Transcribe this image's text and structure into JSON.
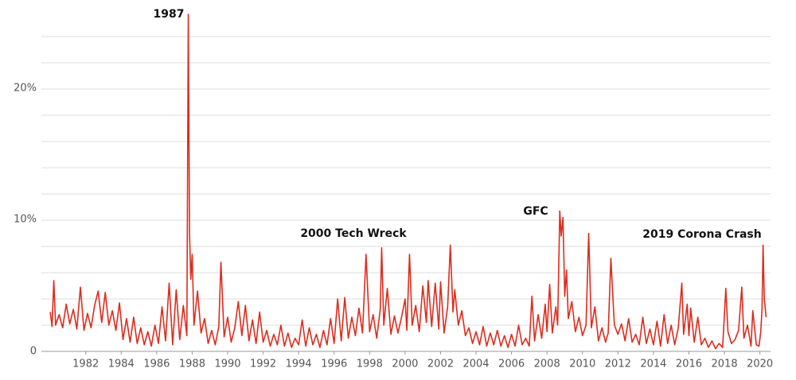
{
  "chart_data": {
    "type": "line",
    "annotations": [
      "1987",
      "2000 Tech Wreck",
      "GFC",
      "2019 Corona Crash"
    ],
    "x": [
      1980.0,
      1980.1,
      1980.2,
      1980.3,
      1980.5,
      1980.7,
      1980.9,
      1981.1,
      1981.3,
      1981.5,
      1981.7,
      1981.9,
      1982.1,
      1982.3,
      1982.5,
      1982.7,
      1982.9,
      1983.1,
      1983.3,
      1983.5,
      1983.7,
      1983.9,
      1984.1,
      1984.3,
      1984.5,
      1984.7,
      1984.9,
      1985.1,
      1985.3,
      1985.5,
      1985.7,
      1985.9,
      1986.1,
      1986.3,
      1986.5,
      1986.7,
      1986.9,
      1987.1,
      1987.3,
      1987.5,
      1987.7,
      1987.78,
      1987.85,
      1987.92,
      1988.0,
      1988.1,
      1988.3,
      1988.5,
      1988.7,
      1988.9,
      1989.1,
      1989.3,
      1989.5,
      1989.62,
      1989.8,
      1990.0,
      1990.2,
      1990.4,
      1990.6,
      1990.8,
      1991.0,
      1991.2,
      1991.4,
      1991.6,
      1991.8,
      1992.0,
      1992.2,
      1992.4,
      1992.6,
      1992.8,
      1993.0,
      1993.2,
      1993.4,
      1993.6,
      1993.8,
      1994.0,
      1994.2,
      1994.4,
      1994.6,
      1994.8,
      1995.0,
      1995.2,
      1995.4,
      1995.6,
      1995.8,
      1996.0,
      1996.2,
      1996.4,
      1996.6,
      1996.8,
      1997.0,
      1997.2,
      1997.4,
      1997.6,
      1997.8,
      1998.0,
      1998.2,
      1998.4,
      1998.6,
      1998.68,
      1998.8,
      1999.0,
      1999.2,
      1999.4,
      1999.6,
      1999.8,
      2000.0,
      2000.1,
      2000.25,
      2000.4,
      2000.6,
      2000.8,
      2001.0,
      2001.2,
      2001.3,
      2001.5,
      2001.7,
      2001.9,
      2002.0,
      2002.2,
      2002.4,
      2002.55,
      2002.7,
      2002.8,
      2003.0,
      2003.2,
      2003.4,
      2003.6,
      2003.8,
      2004.0,
      2004.2,
      2004.4,
      2004.6,
      2004.8,
      2005.0,
      2005.2,
      2005.4,
      2005.6,
      2005.8,
      2006.0,
      2006.2,
      2006.4,
      2006.6,
      2006.8,
      2007.0,
      2007.15,
      2007.3,
      2007.5,
      2007.7,
      2007.9,
      2008.0,
      2008.15,
      2008.3,
      2008.5,
      2008.6,
      2008.72,
      2008.8,
      2008.9,
      2009.0,
      2009.1,
      2009.2,
      2009.4,
      2009.6,
      2009.8,
      2010.0,
      2010.2,
      2010.35,
      2010.5,
      2010.7,
      2010.9,
      2011.1,
      2011.3,
      2011.45,
      2011.6,
      2011.7,
      2011.8,
      2012.0,
      2012.2,
      2012.4,
      2012.6,
      2012.8,
      2013.0,
      2013.2,
      2013.4,
      2013.6,
      2013.8,
      2014.0,
      2014.2,
      2014.4,
      2014.6,
      2014.8,
      2015.0,
      2015.2,
      2015.4,
      2015.6,
      2015.7,
      2015.9,
      2016.0,
      2016.1,
      2016.3,
      2016.5,
      2016.7,
      2016.9,
      2017.1,
      2017.3,
      2017.5,
      2017.7,
      2017.9,
      2018.08,
      2018.2,
      2018.4,
      2018.6,
      2018.8,
      2018.98,
      2019.1,
      2019.3,
      2019.5,
      2019.6,
      2019.8,
      2019.95,
      2020.05,
      2020.12,
      2020.18,
      2020.25,
      2020.35
    ],
    "series": [
      {
        "color": "#dd2c1e",
        "values": [
          3.0,
          1.9,
          5.4,
          2.0,
          2.8,
          1.8,
          3.6,
          2.1,
          3.2,
          1.7,
          4.9,
          1.6,
          2.9,
          1.8,
          3.5,
          4.6,
          2.2,
          4.5,
          2.0,
          3.1,
          1.6,
          3.7,
          0.9,
          2.5,
          0.7,
          2.6,
          0.6,
          1.8,
          0.5,
          1.5,
          0.4,
          2.0,
          0.6,
          3.4,
          0.8,
          5.2,
          0.5,
          4.7,
          0.9,
          3.5,
          1.2,
          25.7,
          9.0,
          5.5,
          7.4,
          2.0,
          4.6,
          1.4,
          2.5,
          0.6,
          1.6,
          0.5,
          1.9,
          6.8,
          1.1,
          2.6,
          0.7,
          1.8,
          3.8,
          1.2,
          3.5,
          0.8,
          2.4,
          0.6,
          3.0,
          0.7,
          1.6,
          0.4,
          1.3,
          0.5,
          2.0,
          0.4,
          1.4,
          0.3,
          1.0,
          0.5,
          2.4,
          0.4,
          1.8,
          0.5,
          1.3,
          0.3,
          1.6,
          0.5,
          2.5,
          0.6,
          4.0,
          0.8,
          4.1,
          1.0,
          2.6,
          1.2,
          3.3,
          1.4,
          7.4,
          1.5,
          2.8,
          1.0,
          3.2,
          7.9,
          2.0,
          4.8,
          1.3,
          2.7,
          1.4,
          2.6,
          4.0,
          1.6,
          7.4,
          2.0,
          3.5,
          1.5,
          5.0,
          2.2,
          5.4,
          1.9,
          5.2,
          1.7,
          5.3,
          1.4,
          3.4,
          8.1,
          3.0,
          4.7,
          2.0,
          3.1,
          1.2,
          1.8,
          0.6,
          1.5,
          0.5,
          1.9,
          0.4,
          1.4,
          0.5,
          1.6,
          0.4,
          1.2,
          0.3,
          1.3,
          0.4,
          2.0,
          0.5,
          1.0,
          0.4,
          4.2,
          0.8,
          2.8,
          1.0,
          3.6,
          1.5,
          5.1,
          1.4,
          3.4,
          2.0,
          10.7,
          8.8,
          10.2,
          4.2,
          6.2,
          2.5,
          3.8,
          1.5,
          2.6,
          1.2,
          2.0,
          9.0,
          1.8,
          3.4,
          0.8,
          1.8,
          0.7,
          1.4,
          7.1,
          4.5,
          2.0,
          1.3,
          2.1,
          0.8,
          2.5,
          0.7,
          1.3,
          0.5,
          2.6,
          0.6,
          1.7,
          0.5,
          2.3,
          0.4,
          2.8,
          0.6,
          2.0,
          0.5,
          1.8,
          5.2,
          1.3,
          3.6,
          1.2,
          3.3,
          0.7,
          2.6,
          0.5,
          1.0,
          0.3,
          0.8,
          0.2,
          0.6,
          0.3,
          4.8,
          1.5,
          0.6,
          0.9,
          1.6,
          4.9,
          1.0,
          2.0,
          0.4,
          3.1,
          0.5,
          0.4,
          1.5,
          3.2,
          8.1,
          4.0,
          2.6
        ]
      }
    ],
    "xlim": [
      1979.5,
      2020.6
    ],
    "xticks": [
      1982,
      1984,
      1986,
      1988,
      1990,
      1992,
      1994,
      1996,
      1998,
      2000,
      2002,
      2004,
      2006,
      2008,
      2010,
      2012,
      2014,
      2016,
      2018,
      2020
    ],
    "ylim": [
      0,
      26
    ],
    "yticks": [
      0,
      {
        "value": 10,
        "label": "10%"
      },
      {
        "value": 20,
        "label": "20%"
      }
    ],
    "minor_yticks": [
      2,
      4,
      6,
      8,
      12,
      14,
      16,
      18,
      22,
      24
    ],
    "grid": true
  }
}
